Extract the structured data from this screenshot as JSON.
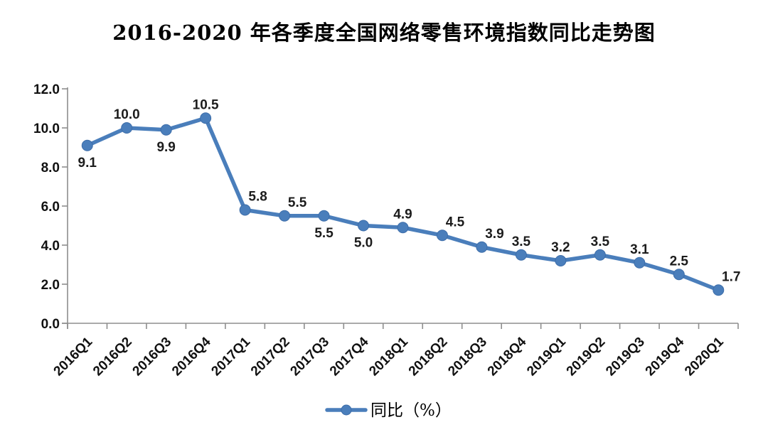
{
  "page": {
    "background_color": "#ffffff"
  },
  "chart_data": {
    "type": "line",
    "title": "2016-2020 年各季度全国网络零售环境指数同比走势图",
    "categories": [
      "2016Q1",
      "2016Q2",
      "2016Q3",
      "2016Q4",
      "2017Q1",
      "2017Q2",
      "2017Q3",
      "2017Q4",
      "2018Q1",
      "2018Q2",
      "2018Q3",
      "2018Q4",
      "2019Q1",
      "2019Q2",
      "2019Q3",
      "2019Q4",
      "2020Q1"
    ],
    "series": [
      {
        "name": "同比（%）",
        "values": [
          9.1,
          10.0,
          9.9,
          10.5,
          5.8,
          5.5,
          5.5,
          5.0,
          4.9,
          4.5,
          3.9,
          3.5,
          3.2,
          3.5,
          3.1,
          2.5,
          1.7
        ]
      }
    ],
    "xlabel": "",
    "ylabel": "",
    "ylim": [
      0,
      12
    ],
    "ytick_step": 2,
    "ytick_labels": [
      "0.0",
      "2.0",
      "4.0",
      "6.0",
      "8.0",
      "10.0",
      "12.0"
    ],
    "grid": false,
    "legend_position": "bottom-center",
    "data_labels_shown": true,
    "data_label_decimals": 1,
    "label_positions": [
      "below",
      "above",
      "below",
      "above",
      "above-right",
      "above-right",
      "below",
      "below",
      "above",
      "above-right",
      "above-right",
      "above",
      "above",
      "above",
      "above",
      "above",
      "above-right"
    ],
    "colors": {
      "line": "#4a7ebb",
      "marker": "#4a7ebb",
      "marker_edge": "#3d6da9",
      "axis": "#8e8e8e",
      "text": "#111111"
    }
  }
}
